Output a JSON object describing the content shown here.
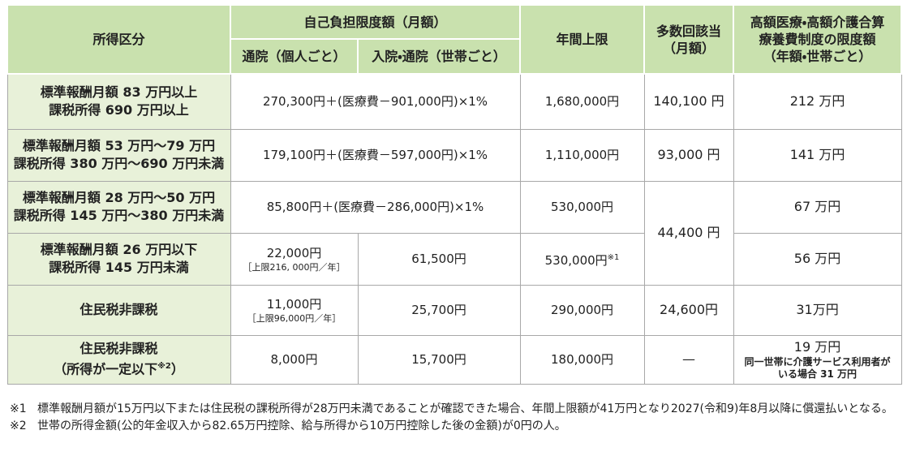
{
  "header": {
    "income_category": "所得区分",
    "self_pay_limit": "自己負担限度額（月額）",
    "outpatient_individual": "通院（個人ごと）",
    "inpatient_outpatient_household": "入院・通院（世帯ごと）",
    "annual_cap": "年間上限",
    "multiple_times": [
      "多数回該当",
      "（月額）"
    ],
    "combined_limit": [
      "高額医療・高額介護合算",
      "療養費制度の限度額",
      "（年額・世帯ごと）"
    ]
  },
  "rows": [
    {
      "income": [
        "標準報酬月額 83 万円以上",
        "課税所得 690 万円以上"
      ],
      "self_pay": "270,300円＋(医療費－901,000円)×1%",
      "annual_cap": "1,680,000円",
      "multiple_times": "140,100 円",
      "combined_limit": "212 万円"
    },
    {
      "income": [
        "標準報酬月額 53 万円～79 万円",
        "課税所得 380 万円～690 万円未満"
      ],
      "self_pay": "179,100円＋(医療費－597,000円)×1%",
      "annual_cap": "1,110,000円",
      "multiple_times": "93,000 円",
      "combined_limit": "141 万円"
    },
    {
      "income": [
        "標準報酬月額 28 万円～50 万円",
        "課税所得 145 万円～380 万円未満"
      ],
      "self_pay": "85,800円＋(医療費－286,000円)×1%",
      "annual_cap": "530,000円",
      "multiple_times": "44,400 円",
      "combined_limit": "67 万円"
    },
    {
      "income": [
        "標準報酬月額 26 万円以下",
        "課税所得 145 万円未満"
      ],
      "outpatient": [
        "22,000円",
        "［上限216, 000円／年］"
      ],
      "inpatient_outpatient": "61,500円",
      "annual_cap": "530,000円",
      "annual_cap_note": "※1",
      "combined_limit": "56 万円"
    },
    {
      "income": [
        "住民税非課税"
      ],
      "outpatient": [
        "11,000円",
        "［上限96,000円／年］"
      ],
      "inpatient_outpatient": "25,700円",
      "annual_cap": "290,000円",
      "multiple_times": "24,600円",
      "combined_limit": "31万円"
    },
    {
      "income": [
        "住民税非課税",
        "（所得が一定以下"
      ],
      "income_note": "※2",
      "income_close": "）",
      "outpatient": [
        "8,000円"
      ],
      "inpatient_outpatient": "15,700円",
      "annual_cap": "180,000円",
      "multiple_times": "—",
      "combined_limit": "19 万円",
      "combined_limit_note": [
        "同一世帯に介護サービス利用者が",
        "いる場合 31 万円"
      ]
    }
  ],
  "notes": [
    {
      "mark": "※1",
      "text": "標準報酬月額が15万円以下または住民税の課税所得が28万円未満であることが確認できた場合、年間上限額が41万円となり2027(令和9)年8月以降に償還払いとなる。"
    },
    {
      "mark": "※2",
      "text": "世帯の所得金額(公的年金収入から82.65万円控除、給与所得から10万円控除した後の金額)が0円の人。"
    }
  ]
}
